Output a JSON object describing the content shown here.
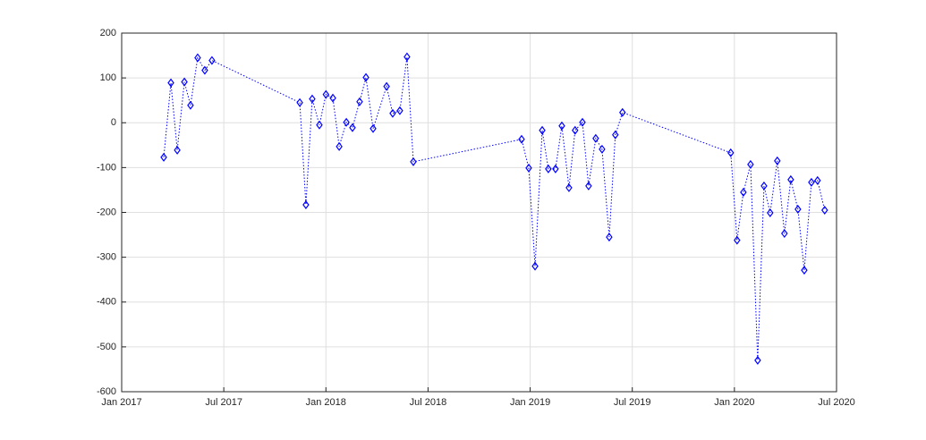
{
  "chart_data": {
    "type": "line",
    "x": [
      2017.206,
      2017.241,
      2017.272,
      2017.307,
      2017.337,
      2017.372,
      2017.407,
      2017.442,
      2017.872,
      2017.902,
      2017.933,
      2017.968,
      2018.0,
      2018.034,
      2018.065,
      2018.1,
      2018.13,
      2018.165,
      2018.196,
      2018.231,
      2018.297,
      2018.327,
      2018.362,
      2018.397,
      2018.428,
      2018.958,
      2018.993,
      2019.024,
      2019.059,
      2019.089,
      2019.124,
      2019.155,
      2019.19,
      2019.22,
      2019.256,
      2019.286,
      2019.321,
      2019.352,
      2019.387,
      2019.417,
      2019.452,
      2019.982,
      2020.013,
      2020.044,
      2020.079,
      2020.114,
      2020.145,
      2020.175,
      2020.21,
      2020.245,
      2020.276,
      2020.311,
      2020.342,
      2020.377,
      2020.407,
      2020.442
    ],
    "values": [
      -77,
      89,
      -61,
      91,
      39,
      145,
      117,
      139,
      45,
      -183,
      53,
      -5,
      63,
      55,
      -53,
      1,
      -11,
      47,
      101,
      -13,
      81,
      21,
      27,
      147,
      -87,
      -37,
      -101,
      -320,
      -17,
      -103,
      -103,
      -7,
      -145,
      -17,
      1,
      -141,
      -35,
      -59,
      -255,
      -27,
      23,
      -67,
      -262,
      -155,
      -93,
      -530,
      -141,
      -201,
      -85,
      -247,
      -127,
      -193,
      -329,
      -133,
      -129,
      -195
    ],
    "color": "#0000ff",
    "marker": "diamond",
    "line_style": "dotted",
    "xlim": [
      2017,
      2020.5
    ],
    "xticks": [
      {
        "value": 2017,
        "label": "Jan 2017"
      },
      {
        "value": 2017.5,
        "label": "Jul 2017"
      },
      {
        "value": 2018,
        "label": "Jan 2018"
      },
      {
        "value": 2018.5,
        "label": "Jul 2018"
      },
      {
        "value": 2019,
        "label": "Jan 2019"
      },
      {
        "value": 2019.5,
        "label": "Jul 2019"
      },
      {
        "value": 2020,
        "label": "Jan 2020"
      },
      {
        "value": 2020.5,
        "label": "Jul 2020"
      }
    ],
    "ylim": [
      -600,
      200
    ],
    "yticks": [
      -600,
      -500,
      -400,
      -300,
      -200,
      -100,
      0,
      100,
      200
    ],
    "grid": true
  }
}
